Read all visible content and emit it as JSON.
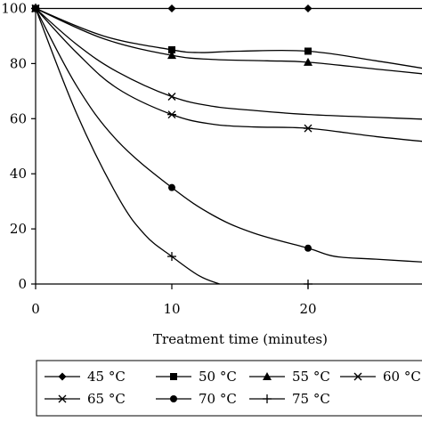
{
  "chart_data": {
    "type": "line",
    "title": "",
    "xlabel": "Treatment time (minutes)",
    "ylabel": "",
    "xlim": [
      0,
      30
    ],
    "ylim": [
      0,
      100
    ],
    "x_ticks": [
      0,
      10,
      20
    ],
    "y_ticks": [
      0,
      20,
      40,
      60,
      80,
      100
    ],
    "grid": false,
    "legend_position": "bottom",
    "series": [
      {
        "name": "45 °C",
        "marker": "diamond",
        "x": [
          0,
          10,
          20,
          30
        ],
        "y": [
          100,
          100,
          100,
          100
        ],
        "marked_x": [
          0,
          10,
          20
        ]
      },
      {
        "name": "50 °C",
        "marker": "square",
        "x": [
          0,
          5,
          10,
          12,
          15,
          20,
          25,
          30
        ],
        "y": [
          100,
          90,
          85,
          84,
          84.5,
          84.5,
          81,
          77
        ],
        "marked_x": [
          0,
          10,
          20
        ]
      },
      {
        "name": "55 °C",
        "marker": "triangle",
        "x": [
          0,
          5,
          10,
          13,
          17,
          20,
          25,
          30
        ],
        "y": [
          100,
          89,
          83,
          81.5,
          81,
          80.5,
          78,
          75.5
        ],
        "marked_x": [
          0,
          10,
          20
        ]
      },
      {
        "name": "60 °C",
        "marker": "x",
        "x": [
          0,
          3,
          6,
          10,
          13,
          16,
          20,
          25,
          30
        ],
        "y": [
          100,
          87,
          77,
          68,
          64.5,
          63,
          61.5,
          60.5,
          59.5
        ],
        "marked_x": [
          0,
          10
        ]
      },
      {
        "name": "65 °C",
        "marker": "star",
        "x": [
          0,
          3,
          6,
          10,
          13,
          16,
          20,
          25,
          30
        ],
        "y": [
          100,
          84,
          71,
          61.5,
          58,
          57,
          56.5,
          53.5,
          51
        ],
        "marked_x": [
          0,
          10,
          20
        ]
      },
      {
        "name": "70 °C",
        "marker": "circle",
        "x": [
          0,
          3,
          6,
          10,
          13,
          16,
          20,
          22,
          25,
          30
        ],
        "y": [
          100,
          72,
          52,
          35,
          25,
          18.5,
          13,
          10,
          9,
          7.5
        ],
        "marked_x": [
          0,
          10,
          20
        ]
      },
      {
        "name": "75 °C",
        "marker": "plus",
        "x": [
          0,
          3,
          6,
          8,
          10,
          12,
          13.5
        ],
        "y": [
          100,
          62,
          32,
          18,
          10,
          3,
          0
        ],
        "marked_x": [
          0,
          10,
          20
        ],
        "marked_y": [
          100,
          10,
          0
        ]
      }
    ]
  }
}
